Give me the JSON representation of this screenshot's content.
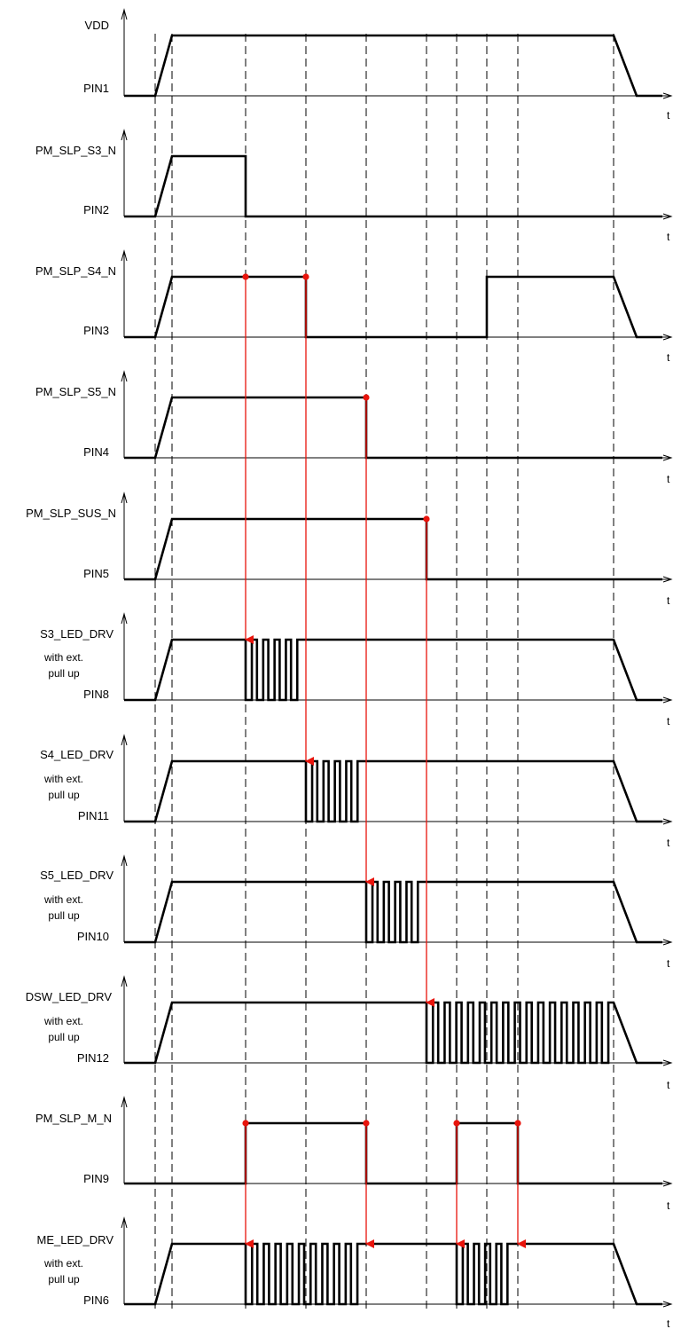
{
  "diagram": {
    "time_axis_label": "t",
    "signals": [
      {
        "name": "VDD",
        "pin": "PIN1",
        "note1": "",
        "note2": ""
      },
      {
        "name": "PM_SLP_S3_N",
        "pin": "PIN2",
        "note1": "",
        "note2": ""
      },
      {
        "name": "PM_SLP_S4_N",
        "pin": "PIN3",
        "note1": "",
        "note2": ""
      },
      {
        "name": "PM_SLP_S5_N",
        "pin": "PIN4",
        "note1": "",
        "note2": ""
      },
      {
        "name": "PM_SLP_SUS_N",
        "pin": "PIN5",
        "note1": "",
        "note2": ""
      },
      {
        "name": "S3_LED_DRV",
        "pin": "PIN8",
        "note1": "with ext.",
        "note2": "pull up"
      },
      {
        "name": "S4_LED_DRV",
        "pin": "PIN11",
        "note1": "with ext.",
        "note2": "pull up"
      },
      {
        "name": "S5_LED_DRV",
        "pin": "PIN10",
        "note1": "with ext.",
        "note2": "pull up"
      },
      {
        "name": "DSW_LED_DRV",
        "pin": "PIN12",
        "note1": "with ext.",
        "note2": "pull up"
      },
      {
        "name": "PM_SLP_M_N",
        "pin": "PIN9",
        "note1": "",
        "note2": ""
      },
      {
        "name": "ME_LED_DRV",
        "pin": "PIN6",
        "note1": "with ext.",
        "note2": "pull up"
      }
    ],
    "colors": {
      "waveform": "#000000",
      "causal_arrow": "#e8140c",
      "guide_line": "#000000"
    }
  }
}
